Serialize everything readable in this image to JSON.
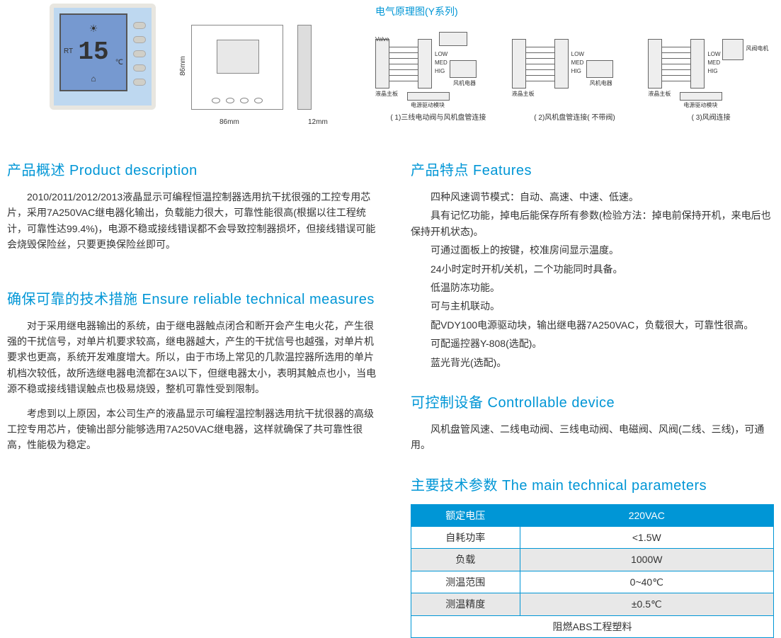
{
  "thermostat": {
    "rt_label": "RT",
    "temp_value": "15",
    "unit": "℃"
  },
  "dimensions": {
    "width": "86mm",
    "height": "86mm",
    "depth": "12mm"
  },
  "wiring": {
    "title": "电气原理图(Y系列)",
    "diag1": {
      "caption": "( 1)三线电动阀与风机盘管连接",
      "power": "电源驱动模块",
      "lcd": "液晶主板",
      "fan": "风机电器",
      "valve": "Valve",
      "low": "LOW",
      "med": "MED",
      "hig": "HIG"
    },
    "diag2": {
      "caption": "( 2)风机盘管连接( 不带阀)",
      "lcd": "液晶主板",
      "fan": "风机电器",
      "low": "LOW",
      "med": "MED",
      "hig": "HIG"
    },
    "diag3": {
      "caption": "( 3)风阀连接",
      "power": "电源驱动模块",
      "lcd": "液晶主板",
      "motor": "风阀电机",
      "low": "LOW",
      "med": "MED",
      "hig": "HIG"
    }
  },
  "sections": {
    "desc_title": "产品概述 Product description",
    "desc_p1": "2010/2011/2012/2013液晶显示可编程恒温控制器选用抗干扰很强的工控专用芯片，采用7A250VAC继电器化输出，负载能力很大，可靠性能很高(根据以往工程统计，可靠性达99.4%)，电源不稳或接线错误都不会导致控制器损坏，但接线错误可能会烧毁保险丝，只要更换保险丝即可。",
    "measures_title": "确保可靠的技术措施 Ensure reliable technical measures",
    "measures_p1": "对于采用继电器输出的系统，由于继电器触点闭合和断开会产生电火花，产生很强的干扰信号，对单片机要求较高，继电器越大，产生的干扰信号也越强，对单片机要求也更高，系统开发难度增大。所以，由于市场上常见的几款温控器所选用的单片机档次较低，故所选继电器电流都在3A以下，但继电器太小，表明其触点也小，当电源不稳或接线错误触点也极易烧毁，整机可靠性受到限制。",
    "measures_p2": "考虑到以上原因，本公司生产的液晶显示可编程温控制器选用抗干扰很器的高级工控专用芯片，使输出部分能够选用7A250VAC继电器，这样就确保了共可靠性很高，性能极为稳定。",
    "features_title": "产品特点 Features",
    "features": [
      "四种风速调节模式：自动、高速、中速、低速。",
      "具有记忆功能，掉电后能保存所有参数(检验方法：掉电前保持开机，来电后也保持开机状态)。",
      "可通过面板上的按键，校准房间显示温度。",
      "24小时定时开机/关机，二个功能同时具备。",
      "低温防冻功能。",
      "可与主机联动。",
      "配VDY100电源驱动块，输出继电器7A250VAC，负载很大，可靠性很高。",
      "可配遥控器Y-808(选配)。",
      "蓝光背光(选配)。"
    ],
    "device_title": "可控制设备 Controllable device",
    "device_p1": "风机盘管风速、二线电动阀、三线电动阀、电磁阀、风阀(二线、三线)，可通用。",
    "params_title": "主要技术参数 The main technical parameters",
    "params": [
      {
        "label": "额定电压",
        "value": "220VAC"
      },
      {
        "label": "自耗功率",
        "value": "<1.5W"
      },
      {
        "label": "负载",
        "value": "1000W"
      },
      {
        "label": "测温范围",
        "value": "0~40℃"
      },
      {
        "label": "测温精度",
        "value": "±0.5℃"
      }
    ],
    "params_footer": "阻燃ABS工程塑料"
  }
}
